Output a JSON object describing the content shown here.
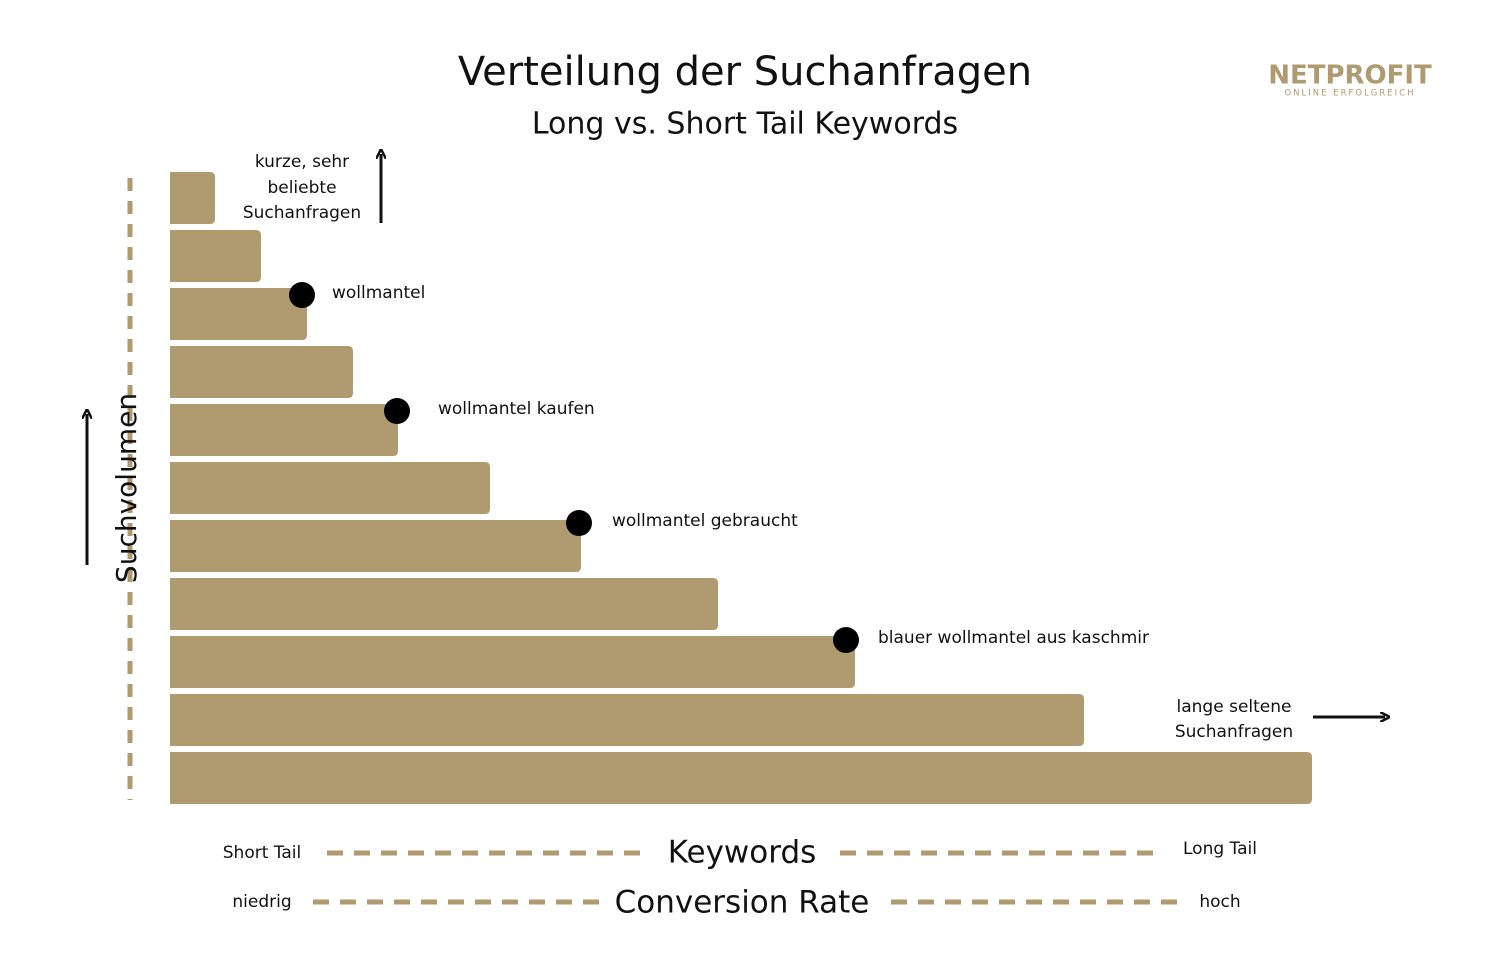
{
  "header": {
    "title": "Verteilung der Suchanfragen",
    "subtitle": "Long vs. Short Tail Keywords"
  },
  "logo": {
    "name": "NETPROFIT",
    "tagline": "ONLINE ERFOLGREICH"
  },
  "top_note": [
    "kurze, sehr",
    "beliebte",
    "Suchanfragen"
  ],
  "y_label": "Suchvolumen",
  "keywords": [
    "wollmantel",
    "wollmantel kaufen",
    "wollmantel gebraucht",
    "blauer wollmantel aus kaschmir"
  ],
  "right_note": [
    "lange seltene",
    "Suchanfragen"
  ],
  "bottom": {
    "keywords_row": {
      "left": "Short Tail",
      "center": "Keywords",
      "right": "Long Tail"
    },
    "conversion_row": {
      "left": "niedrig",
      "center": "Conversion Rate",
      "right": "hoch"
    }
  }
}
